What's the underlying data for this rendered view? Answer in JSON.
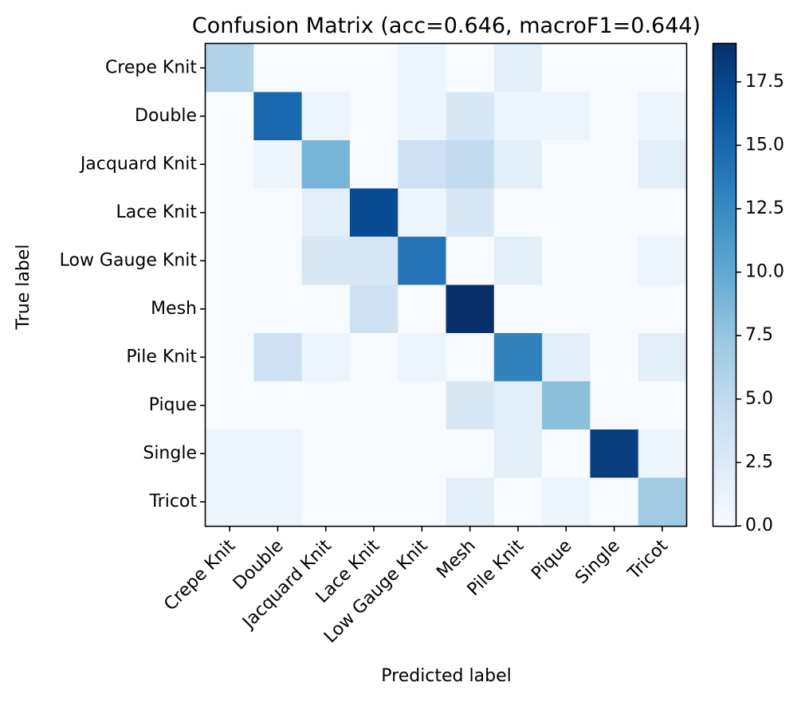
{
  "chart_data": {
    "type": "heatmap",
    "title": "Confusion Matrix (acc=0.646, macroF1=0.644)",
    "xlabel": "Predicted label",
    "ylabel": "True label",
    "x_categories": [
      "Crepe Knit",
      "Double",
      "Jacquard Knit",
      "Lace Knit",
      "Low Gauge Knit",
      "Mesh",
      "Pile Knit",
      "Pique",
      "Single",
      "Tricot"
    ],
    "y_categories": [
      "Crepe Knit",
      "Double",
      "Jacquard Knit",
      "Lace Knit",
      "Low Gauge Knit",
      "Mesh",
      "Pile Knit",
      "Pique",
      "Single",
      "Tricot"
    ],
    "values": [
      [
        6,
        0,
        0,
        0,
        1,
        0,
        2,
        0,
        0,
        0
      ],
      [
        0,
        15,
        1,
        0,
        1,
        3,
        1,
        1,
        0,
        1
      ],
      [
        0,
        1,
        9,
        0,
        4,
        5,
        2,
        0,
        0,
        2
      ],
      [
        0,
        0,
        2,
        17,
        1,
        3,
        0,
        0,
        0,
        0
      ],
      [
        0,
        0,
        3,
        3,
        14,
        0,
        2,
        0,
        0,
        1
      ],
      [
        0,
        0,
        0,
        4,
        0,
        19,
        0,
        0,
        0,
        0
      ],
      [
        0,
        4,
        1,
        0,
        1,
        0,
        13,
        2,
        0,
        2
      ],
      [
        0,
        0,
        0,
        0,
        0,
        3,
        2,
        8,
        0,
        0
      ],
      [
        1,
        1,
        0,
        0,
        0,
        0,
        2,
        0,
        18,
        1
      ],
      [
        1,
        1,
        0,
        0,
        0,
        2,
        0,
        1,
        0,
        7
      ]
    ],
    "colormap": "Blues",
    "colormap_stops": [
      "#f7fbff",
      "#deebf7",
      "#c6dbef",
      "#9ecae1",
      "#6baed6",
      "#4292c6",
      "#2171b5",
      "#08519c",
      "#08306b"
    ],
    "vmin": 0,
    "vmax": 19,
    "colorbar_ticks": [
      0,
      2.5,
      5,
      7.5,
      10,
      12.5,
      15,
      17.5
    ],
    "colorbar_tick_labels": [
      "0.0",
      "2.5",
      "5.0",
      "7.5",
      "10.0",
      "12.5",
      "15.0",
      "17.5"
    ]
  }
}
